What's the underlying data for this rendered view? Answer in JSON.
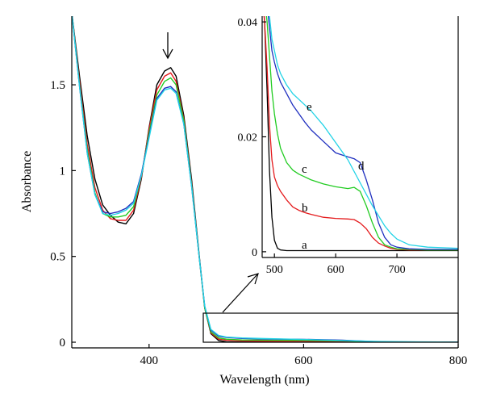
{
  "chart_data": [
    {
      "id": "main",
      "type": "line",
      "xlabel": "Wavelength (nm)",
      "ylabel": "Absorbance",
      "xlim": [
        300,
        800
      ],
      "ylim": [
        0,
        1.9
      ],
      "xticks": [
        400,
        600,
        800
      ],
      "yticks": [
        0,
        0.5,
        1,
        1.5
      ],
      "ytick_labels": [
        "0",
        "0.5",
        "1",
        "1.5"
      ],
      "grid": false,
      "annotations": [
        "downward arrow at ~428 nm peak indicating absorbance decrease",
        "rectangle 475–800 nm, 0–0.17 zoomed into inset"
      ],
      "series": [
        {
          "label": "a",
          "color": "#000000",
          "x": [
            300,
            310,
            320,
            330,
            340,
            350,
            360,
            370,
            380,
            390,
            400,
            410,
            420,
            428,
            435,
            445,
            455,
            465,
            472,
            480,
            490,
            500,
            520,
            550,
            600,
            650,
            700,
            750,
            800
          ],
          "y": [
            1.92,
            1.55,
            1.2,
            0.95,
            0.8,
            0.74,
            0.7,
            0.69,
            0.75,
            0.95,
            1.25,
            1.5,
            1.58,
            1.6,
            1.55,
            1.32,
            0.95,
            0.5,
            0.2,
            0.05,
            0.01,
            0.003,
            0.001,
            0.001,
            0.001,
            0.001,
            0.001,
            0.001,
            0.001
          ]
        },
        {
          "label": "b",
          "color": "#e41a1c",
          "x": [
            300,
            310,
            320,
            330,
            340,
            350,
            360,
            370,
            380,
            390,
            400,
            410,
            420,
            428,
            435,
            445,
            455,
            465,
            472,
            480,
            490,
            500,
            520,
            550,
            600,
            650,
            700,
            750,
            800
          ],
          "y": [
            1.92,
            1.52,
            1.15,
            0.9,
            0.77,
            0.72,
            0.71,
            0.71,
            0.77,
            0.96,
            1.24,
            1.47,
            1.55,
            1.57,
            1.52,
            1.3,
            0.93,
            0.49,
            0.2,
            0.055,
            0.018,
            0.012,
            0.008,
            0.006,
            0.005,
            0.005,
            0.001,
            0.001,
            0.001
          ]
        },
        {
          "label": "c",
          "color": "#22cc22",
          "x": [
            300,
            310,
            320,
            330,
            340,
            350,
            360,
            370,
            380,
            390,
            400,
            410,
            420,
            428,
            435,
            445,
            455,
            465,
            472,
            480,
            490,
            500,
            520,
            550,
            600,
            650,
            700,
            750,
            800
          ],
          "y": [
            1.92,
            1.5,
            1.12,
            0.87,
            0.75,
            0.73,
            0.73,
            0.74,
            0.79,
            0.97,
            1.22,
            1.44,
            1.52,
            1.54,
            1.5,
            1.29,
            0.92,
            0.49,
            0.2,
            0.06,
            0.025,
            0.018,
            0.013,
            0.012,
            0.011,
            0.008,
            0.001,
            0.001,
            0.001
          ]
        },
        {
          "label": "d",
          "color": "#1f2fbf",
          "x": [
            300,
            310,
            320,
            330,
            340,
            350,
            360,
            370,
            380,
            390,
            400,
            410,
            420,
            428,
            435,
            445,
            455,
            465,
            472,
            480,
            490,
            500,
            520,
            550,
            600,
            650,
            700,
            750,
            800
          ],
          "y": [
            1.92,
            1.49,
            1.1,
            0.86,
            0.76,
            0.75,
            0.76,
            0.78,
            0.82,
            0.98,
            1.2,
            1.42,
            1.48,
            1.49,
            1.46,
            1.27,
            0.91,
            0.49,
            0.21,
            0.07,
            0.035,
            0.028,
            0.022,
            0.019,
            0.017,
            0.012,
            0.002,
            0.001,
            0.001
          ]
        },
        {
          "label": "e",
          "color": "#22d3e6",
          "x": [
            300,
            310,
            320,
            330,
            340,
            350,
            360,
            370,
            380,
            390,
            400,
            410,
            420,
            428,
            435,
            445,
            455,
            465,
            472,
            480,
            490,
            500,
            520,
            550,
            600,
            650,
            700,
            750,
            800
          ],
          "y": [
            1.92,
            1.49,
            1.1,
            0.86,
            0.75,
            0.74,
            0.75,
            0.77,
            0.81,
            0.97,
            1.19,
            1.41,
            1.47,
            1.48,
            1.45,
            1.27,
            0.91,
            0.49,
            0.21,
            0.075,
            0.04,
            0.03,
            0.025,
            0.021,
            0.016,
            0.01,
            0.004,
            0.002,
            0.001
          ]
        }
      ]
    },
    {
      "id": "inset",
      "type": "line",
      "xlim": [
        480,
        800
      ],
      "ylim": [
        -0.001,
        0.041
      ],
      "xticks": [
        500,
        600,
        700
      ],
      "yticks": [
        0,
        0.02,
        0.04
      ],
      "ytick_labels": [
        "0",
        "0.02",
        "0.04"
      ],
      "grid": false,
      "series": [
        {
          "label": "a",
          "color": "#000000",
          "x": [
            480,
            484,
            488,
            492,
            496,
            500,
            505,
            510,
            520,
            550,
            600,
            650,
            700,
            750,
            800
          ],
          "y": [
            0.045,
            0.04,
            0.028,
            0.014,
            0.006,
            0.002,
            0.0006,
            0.0003,
            0.0002,
            0.0002,
            0.0002,
            0.0002,
            0.0002,
            0.0002,
            0.0002
          ]
        },
        {
          "label": "b",
          "color": "#e41a1c",
          "x": [
            480,
            484,
            488,
            492,
            496,
            500,
            505,
            510,
            520,
            530,
            540,
            550,
            560,
            580,
            600,
            620,
            630,
            640,
            650,
            660,
            670,
            680,
            690,
            700,
            720,
            750,
            800
          ],
          "y": [
            0.045,
            0.04,
            0.032,
            0.022,
            0.016,
            0.013,
            0.0115,
            0.0105,
            0.009,
            0.0078,
            0.0072,
            0.0068,
            0.0065,
            0.006,
            0.0058,
            0.0057,
            0.0056,
            0.005,
            0.004,
            0.0025,
            0.0015,
            0.001,
            0.0006,
            0.0004,
            0.0003,
            0.0003,
            0.0003
          ]
        },
        {
          "label": "c",
          "color": "#22cc22",
          "x": [
            480,
            484,
            488,
            492,
            496,
            500,
            505,
            510,
            520,
            530,
            540,
            550,
            560,
            580,
            600,
            620,
            630,
            640,
            650,
            660,
            670,
            680,
            690,
            700,
            720,
            750,
            800
          ],
          "y": [
            0.045,
            0.044,
            0.04,
            0.034,
            0.028,
            0.024,
            0.0205,
            0.018,
            0.0155,
            0.0142,
            0.0135,
            0.013,
            0.0125,
            0.0118,
            0.0113,
            0.011,
            0.0112,
            0.0105,
            0.008,
            0.005,
            0.0025,
            0.0012,
            0.0008,
            0.0005,
            0.0004,
            0.0003,
            0.0003
          ]
        },
        {
          "label": "d",
          "color": "#1f2fbf",
          "x": [
            480,
            484,
            488,
            492,
            496,
            500,
            505,
            510,
            520,
            530,
            540,
            550,
            560,
            580,
            600,
            620,
            630,
            640,
            650,
            660,
            670,
            680,
            690,
            700,
            720,
            750,
            800
          ],
          "y": [
            0.045,
            0.045,
            0.043,
            0.039,
            0.035,
            0.033,
            0.031,
            0.0295,
            0.0275,
            0.0255,
            0.024,
            0.0225,
            0.0212,
            0.0192,
            0.0172,
            0.0165,
            0.0162,
            0.0155,
            0.0125,
            0.009,
            0.005,
            0.0025,
            0.0012,
            0.0008,
            0.0005,
            0.0004,
            0.0004
          ]
        },
        {
          "label": "e",
          "color": "#22d3e6",
          "x": [
            480,
            484,
            488,
            492,
            496,
            500,
            505,
            510,
            520,
            530,
            540,
            550,
            560,
            580,
            600,
            620,
            640,
            660,
            680,
            690,
            700,
            720,
            750,
            800
          ],
          "y": [
            0.045,
            0.045,
            0.044,
            0.041,
            0.037,
            0.035,
            0.0325,
            0.031,
            0.029,
            0.0275,
            0.0265,
            0.0255,
            0.0245,
            0.022,
            0.019,
            0.016,
            0.012,
            0.008,
            0.0045,
            0.0032,
            0.0022,
            0.0012,
            0.0008,
            0.0006
          ]
        }
      ]
    }
  ]
}
